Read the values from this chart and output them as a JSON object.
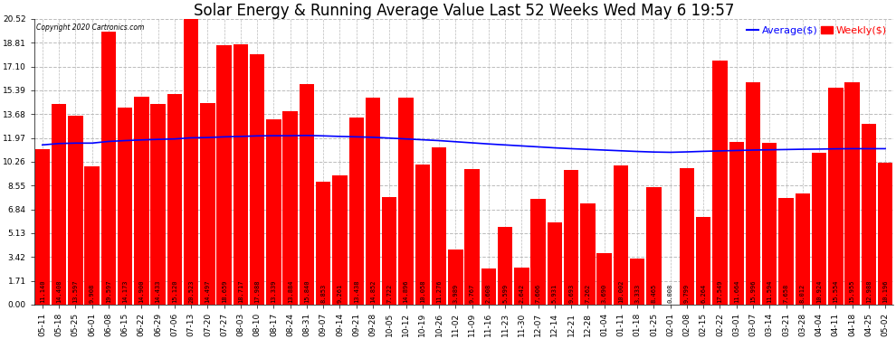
{
  "title": "Solar Energy & Running Average Value Last 52 Weeks Wed May 6 19:57",
  "copyright": "Copyright 2020 Cartronics.com",
  "bar_color": "#ff0000",
  "avg_line_color": "#0000ff",
  "weekly_label_color": "#ff0000",
  "avg_label_color": "#0000ff",
  "background_color": "#ffffff",
  "grid_color": "#bbbbbb",
  "yticks": [
    0.0,
    1.71,
    3.42,
    5.13,
    6.84,
    8.55,
    10.26,
    11.97,
    13.68,
    15.39,
    17.1,
    18.81,
    20.52
  ],
  "categories": [
    "05-11",
    "05-18",
    "05-25",
    "06-01",
    "06-08",
    "06-15",
    "06-22",
    "06-29",
    "07-06",
    "07-13",
    "07-20",
    "07-27",
    "08-03",
    "08-10",
    "08-17",
    "08-24",
    "08-31",
    "09-07",
    "09-14",
    "09-21",
    "09-28",
    "10-05",
    "10-12",
    "10-19",
    "10-26",
    "11-02",
    "11-09",
    "11-16",
    "11-23",
    "11-30",
    "12-07",
    "12-14",
    "12-21",
    "12-28",
    "01-04",
    "01-11",
    "01-18",
    "01-25",
    "02-01",
    "02-08",
    "02-15",
    "02-22",
    "03-01",
    "03-07",
    "03-14",
    "03-21",
    "03-28",
    "04-04",
    "04-11",
    "04-18",
    "04-25",
    "05-02"
  ],
  "weekly_values": [
    11.14,
    14.408,
    13.597,
    9.908,
    19.597,
    14.173,
    14.9,
    14.433,
    15.12,
    20.523,
    14.497,
    18.659,
    18.717,
    17.988,
    13.339,
    13.884,
    15.84,
    8.853,
    9.261,
    13.438,
    14.852,
    7.722,
    14.896,
    10.058,
    11.276,
    3.989,
    9.767,
    2.608,
    5.599,
    2.642,
    7.606,
    5.931,
    9.693,
    7.262,
    3.69,
    10.002,
    3.333,
    8.465,
    0.008,
    9.799,
    6.264,
    17.549,
    11.664,
    15.996,
    11.594,
    7.658,
    8.012,
    10.924,
    15.554,
    15.955,
    12.988,
    10.196
  ],
  "avg_values": [
    11.47,
    11.57,
    11.6,
    11.6,
    11.72,
    11.78,
    11.83,
    11.87,
    11.9,
    11.98,
    12.0,
    12.05,
    12.08,
    12.12,
    12.13,
    12.13,
    12.15,
    12.12,
    12.08,
    12.05,
    12.02,
    11.96,
    11.9,
    11.84,
    11.78,
    11.7,
    11.62,
    11.54,
    11.47,
    11.4,
    11.33,
    11.26,
    11.2,
    11.15,
    11.1,
    11.05,
    11.0,
    10.96,
    10.94,
    10.97,
    11.01,
    11.04,
    11.07,
    11.1,
    11.12,
    11.14,
    11.16,
    11.17,
    11.19,
    11.2,
    11.2,
    11.2
  ],
  "title_fontsize": 12,
  "tick_fontsize": 6.5,
  "bar_value_fontsize": 5.0,
  "legend_fontsize": 8
}
